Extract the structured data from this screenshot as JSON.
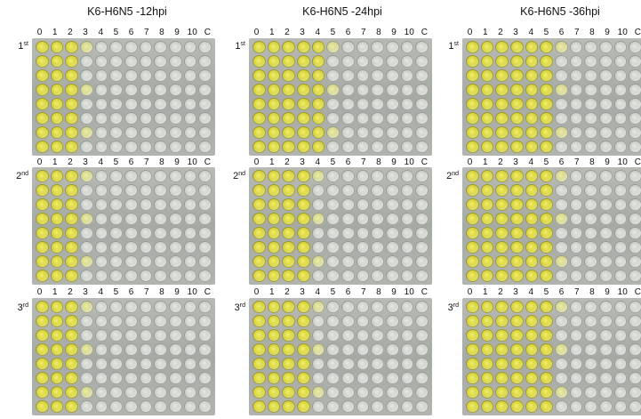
{
  "columns": [
    {
      "title": "K6-H6N5 -12hpi",
      "positive_cols": [
        3,
        3,
        3
      ]
    },
    {
      "title": "K6-H6N5 -24hpi",
      "positive_cols": [
        5,
        4,
        4
      ]
    },
    {
      "title": "K6-H6N5 -36hpi",
      "positive_cols": [
        6,
        6,
        6
      ]
    }
  ],
  "well_labels": [
    "0",
    "1",
    "2",
    "3",
    "4",
    "5",
    "6",
    "7",
    "8",
    "9",
    "10",
    "C"
  ],
  "replicates": [
    {
      "label": "1",
      "suffix": "st"
    },
    {
      "label": "2",
      "suffix": "nd"
    },
    {
      "label": "3",
      "suffix": "rd"
    }
  ],
  "colors": {
    "positive": "#d6d23a",
    "negative": "#c7cac4",
    "plate": "#abafa9"
  }
}
